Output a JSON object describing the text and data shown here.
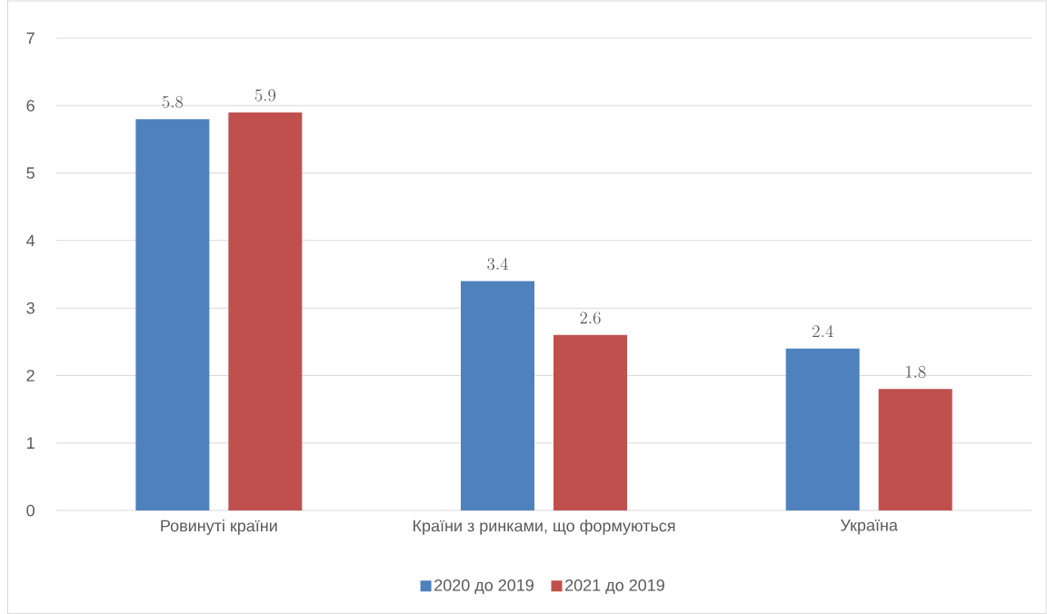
{
  "chart_data": {
    "type": "bar",
    "categories": [
      "Ровинуті країни",
      "Країни з ринками, що формуються",
      "Україна"
    ],
    "series": [
      {
        "name": "2020 до 2019",
        "color": "#4f81bd",
        "values": [
          5.8,
          3.4,
          2.4
        ]
      },
      {
        "name": "2021 до 2019",
        "color": "#c0504d",
        "values": [
          5.9,
          2.6,
          1.8
        ]
      }
    ],
    "ylim": [
      0,
      7
    ],
    "yticks": [
      0,
      1,
      2,
      3,
      4,
      5,
      6,
      7
    ],
    "grid": "y",
    "legend": "bottom",
    "data_labels": true
  }
}
